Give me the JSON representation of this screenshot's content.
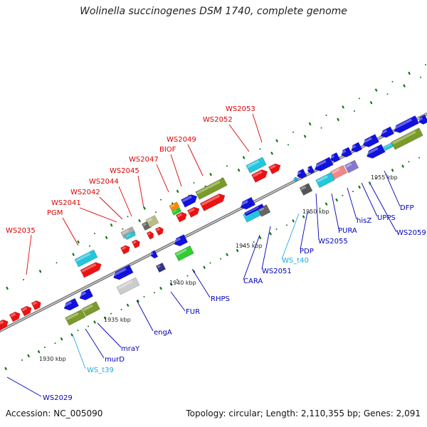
{
  "title": "Wolinella succinogenes DSM 1740, complete genome",
  "accession": "Accession: NC_005090",
  "summary": "Topology: circular; Length: 2,110,355 bp; Genes: 2,091",
  "colors": {
    "forward_label": "#dd0000",
    "reverse_label": "#0000bb",
    "rna_label": "#22aadd",
    "tick_mark": "#117711",
    "backbone": "#888888"
  },
  "scale_labels": [
    "1930 kbp",
    "1935 kbp",
    "1940 kbp",
    "1945 kbp",
    "1950 kbp",
    "1955 kbp"
  ],
  "forward_genes": [
    "WS2035",
    "PGM",
    "WS2041",
    "WS2042",
    "WS2044",
    "WS2045",
    "WS2047",
    "BIOF",
    "WS2049",
    "WS2052",
    "WS2053"
  ],
  "reverse_genes": [
    "WS2029",
    "WS_t39",
    "murD",
    "mraY",
    "engA",
    "FUR",
    "RHPS",
    "CARA",
    "WS2051",
    "WS_t40",
    "PDP",
    "WS2055",
    "PURA",
    "hisZ",
    "UPPS",
    "WS2059",
    "DFP"
  ],
  "rna_genes": [
    "WS_t39",
    "WS_t40"
  ]
}
